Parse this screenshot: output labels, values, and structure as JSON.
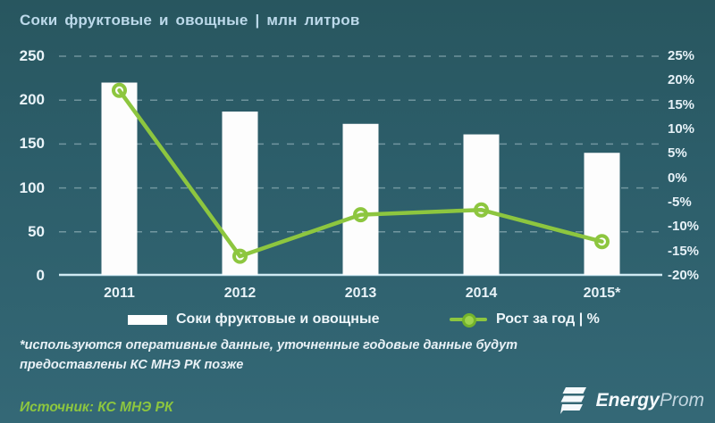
{
  "title": "Соки фруктовые и овощные | млн литров",
  "chart_data": {
    "type": "bar",
    "subtype": "bar-line combo, dual axis",
    "title": "Соки фруктовые и овощные | млн литров",
    "categories": [
      "2011",
      "2012",
      "2013",
      "2014",
      "2015*"
    ],
    "series": [
      {
        "name": "Соки фруктовые и овощные",
        "type": "bar",
        "axis": "left",
        "unit": "млн литров",
        "values": [
          220,
          187,
          173,
          161,
          140
        ]
      },
      {
        "name": "Рост за год | %",
        "type": "line",
        "axis": "right",
        "unit": "%",
        "values": [
          18,
          -16,
          -7.5,
          -6.5,
          -13
        ]
      }
    ],
    "left_axis": {
      "min": 0,
      "max": 250,
      "ticks": [
        0,
        50,
        100,
        150,
        200,
        250
      ]
    },
    "right_axis": {
      "min": -20,
      "max": 25,
      "tick_labels": [
        "25%",
        "20%",
        "15%",
        "10%",
        "5%",
        "0%",
        "-5%",
        "-10%",
        "-15%",
        "-20%"
      ]
    },
    "grid": "horizontal dashed lines at left-axis ticks",
    "legend_position": "bottom",
    "colors": {
      "bar": "#ffffff",
      "line": "#8dc63f",
      "background": "#2c5d69",
      "grid": "#bcd9e2"
    }
  },
  "legend": {
    "bar_label": "Соки фруктовые и овощные",
    "line_label": "Рост за год | %"
  },
  "footnote": {
    "line1": "*используются оперативные данные, уточненные годовые данные будут",
    "line2": "предоставлены КС МНЭ РК позже"
  },
  "source": {
    "text": "Источник: КС МНЭ РК"
  },
  "logo": {
    "text_bold": "Energy",
    "text_light": "Prom"
  }
}
